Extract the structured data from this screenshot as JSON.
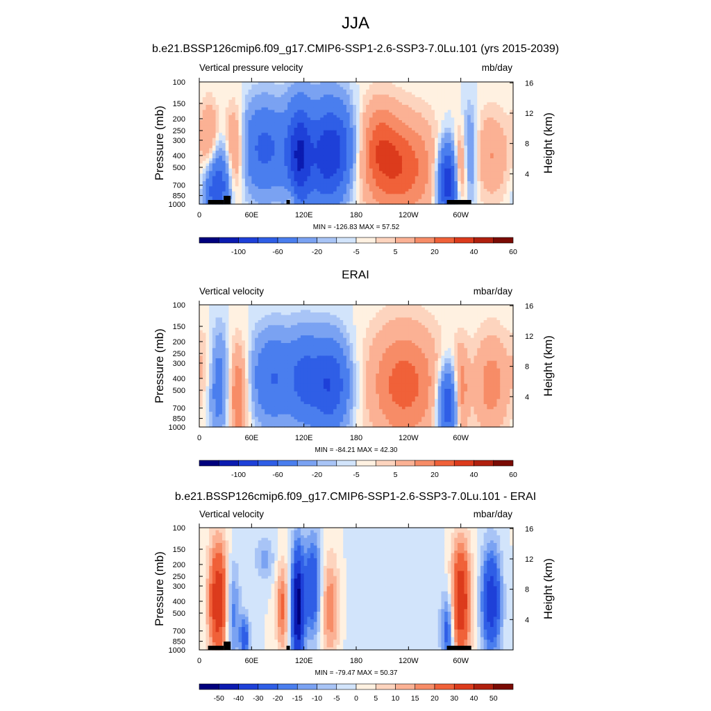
{
  "main_title": "JJA",
  "colors": {
    "diverging": [
      "#00007d",
      "#0b1bb0",
      "#1e40d8",
      "#2f5ee6",
      "#4a7eee",
      "#7aa2f2",
      "#a8c4f6",
      "#d2e4fb",
      "#fff1e1",
      "#fdd4be",
      "#fbb194",
      "#f78c67",
      "#f06139",
      "#dc3b1c",
      "#b0200e",
      "#7a0b04"
    ],
    "land": "#000000"
  },
  "chart_data": [
    {
      "type": "heatmap",
      "title": "b.e21.BSSP126cmip6.f09_g17.CMIP6-SSP1-2.6-SSP3-7.0Lu.101 (yrs 2015-2039)",
      "left_label": "Vertical pressure velocity",
      "units": "mb/day",
      "ylabel": "Pressure (mb)",
      "ylabel_right": "Height (km)",
      "y_ticks": [
        "100",
        "150",
        "200",
        "250",
        "300",
        "400",
        "500",
        "700",
        "850",
        "1000"
      ],
      "y_ticks_right": [
        "16",
        "12",
        "8",
        "4"
      ],
      "x_ticks": [
        "0",
        "60E",
        "120E",
        "180",
        "120W",
        "60W"
      ],
      "minmax": "MIN = -126.83  MAX =  57.52",
      "colorbar_labels": [
        "-100",
        "-60",
        "-20",
        "-5",
        "5",
        "20",
        "40",
        "60"
      ],
      "features": [
        {
          "lon": 25,
          "p": 600,
          "v": -40,
          "wl": 12,
          "wp": 0.5
        },
        {
          "lon": 40,
          "p": 400,
          "v": 40,
          "wl": 8,
          "wp": 0.6
        },
        {
          "lon": 18,
          "p": 800,
          "v": -30,
          "wl": 8,
          "wp": 0.3
        },
        {
          "lon": 12,
          "p": 300,
          "v": 25,
          "wl": 8,
          "wp": 0.5
        },
        {
          "lon": 75,
          "p": 350,
          "v": -45,
          "wl": 20,
          "wp": 0.6
        },
        {
          "lon": 115,
          "p": 400,
          "v": -75,
          "wl": 10,
          "wp": 0.7
        },
        {
          "lon": 145,
          "p": 400,
          "v": -65,
          "wl": 14,
          "wp": 0.7
        },
        {
          "lon": 165,
          "p": 350,
          "v": -35,
          "wl": 12,
          "wp": 0.6
        },
        {
          "lon": 105,
          "p": 900,
          "v": 15,
          "wl": 4,
          "wp": 0.2
        },
        {
          "lon": 230,
          "p": 500,
          "v": 38,
          "wl": 30,
          "wp": 0.7
        },
        {
          "lon": 205,
          "p": 300,
          "v": 18,
          "wl": 15,
          "wp": 0.6
        },
        {
          "lon": 285,
          "p": 650,
          "v": -80,
          "wl": 8,
          "wp": 0.5
        },
        {
          "lon": 300,
          "p": 500,
          "v": 30,
          "wl": 6,
          "wp": 0.5
        },
        {
          "lon": 310,
          "p": 400,
          "v": -30,
          "wl": 6,
          "wp": 0.6
        },
        {
          "lon": 335,
          "p": 400,
          "v": 20,
          "wl": 15,
          "wp": 0.6
        }
      ],
      "land": [
        [
          10,
          28
        ],
        [
          28,
          36
        ],
        [
          100,
          104
        ],
        [
          284,
          312
        ]
      ]
    },
    {
      "type": "heatmap",
      "title": "ERAI",
      "left_label": "Vertical velocity",
      "units": "mbar/day",
      "ylabel": "Pressure (mb)",
      "ylabel_right": "Height (km)",
      "y_ticks": [
        "100",
        "150",
        "200",
        "250",
        "300",
        "400",
        "500",
        "700",
        "850",
        "1000"
      ],
      "y_ticks_right": [
        "16",
        "12",
        "8",
        "4"
      ],
      "x_ticks": [
        "0",
        "60E",
        "120E",
        "180",
        "120W",
        "60W"
      ],
      "minmax": "MIN = -84.21  MAX =  42.30",
      "colorbar_labels": [
        "-100",
        "-60",
        "-20",
        "-5",
        "5",
        "20",
        "40",
        "60"
      ],
      "features": [
        {
          "lon": 22,
          "p": 450,
          "v": -30,
          "wl": 8,
          "wp": 0.7
        },
        {
          "lon": 45,
          "p": 550,
          "v": 32,
          "wl": 8,
          "wp": 0.7
        },
        {
          "lon": 8,
          "p": 300,
          "v": 10,
          "wl": 8,
          "wp": 0.5
        },
        {
          "lon": 85,
          "p": 400,
          "v": -40,
          "wl": 18,
          "wp": 0.6
        },
        {
          "lon": 150,
          "p": 450,
          "v": -60,
          "wl": 16,
          "wp": 0.6
        },
        {
          "lon": 120,
          "p": 400,
          "v": -35,
          "wl": 12,
          "wp": 0.6
        },
        {
          "lon": 235,
          "p": 450,
          "v": 35,
          "wl": 30,
          "wp": 0.8
        },
        {
          "lon": 285,
          "p": 650,
          "v": -60,
          "wl": 8,
          "wp": 0.5
        },
        {
          "lon": 300,
          "p": 500,
          "v": 25,
          "wl": 6,
          "wp": 0.6
        },
        {
          "lon": 335,
          "p": 450,
          "v": 25,
          "wl": 15,
          "wp": 0.7
        }
      ],
      "land": []
    },
    {
      "type": "heatmap",
      "title": "b.e21.BSSP126cmip6.f09_g17.CMIP6-SSP1-2.6-SSP3-7.0Lu.101 - ERAI",
      "left_label": "Vertical velocity",
      "units": "mbar/day",
      "ylabel": "Pressure (mb)",
      "ylabel_right": "Height (km)",
      "y_ticks": [
        "100",
        "150",
        "200",
        "250",
        "300",
        "400",
        "500",
        "700",
        "850",
        "1000"
      ],
      "y_ticks_right": [
        "16",
        "12",
        "8",
        "4"
      ],
      "x_ticks": [
        "0",
        "60E",
        "120E",
        "180",
        "120W",
        "60W"
      ],
      "minmax": "MIN = -79.47  MAX =  50.37",
      "colorbar_labels": [
        "-50",
        "-40",
        "-30",
        "-20",
        "-15",
        "-10",
        "-5",
        "0",
        "5",
        "10",
        "15",
        "20",
        "30",
        "40",
        "50"
      ],
      "features": [
        {
          "lon": 22,
          "p": 400,
          "v": 40,
          "wl": 8,
          "wp": 0.8
        },
        {
          "lon": 38,
          "p": 500,
          "v": -20,
          "wl": 6,
          "wp": 0.7
        },
        {
          "lon": 52,
          "p": 800,
          "v": -25,
          "wl": 4,
          "wp": 0.3
        },
        {
          "lon": 95,
          "p": 450,
          "v": 22,
          "wl": 5,
          "wp": 0.6
        },
        {
          "lon": 113,
          "p": 450,
          "v": -55,
          "wl": 5,
          "wp": 0.8
        },
        {
          "lon": 130,
          "p": 300,
          "v": -30,
          "wl": 7,
          "wp": 0.7
        },
        {
          "lon": 150,
          "p": 450,
          "v": 20,
          "wl": 8,
          "wp": 0.7
        },
        {
          "lon": 75,
          "p": 180,
          "v": -12,
          "wl": 8,
          "wp": 0.3
        },
        {
          "lon": 300,
          "p": 400,
          "v": 40,
          "wl": 8,
          "wp": 0.8
        },
        {
          "lon": 285,
          "p": 700,
          "v": -25,
          "wl": 5,
          "wp": 0.5
        },
        {
          "lon": 335,
          "p": 400,
          "v": -38,
          "wl": 8,
          "wp": 0.7
        },
        {
          "lon": 225,
          "p": 500,
          "v": -5,
          "wl": 40,
          "wp": 0.9
        }
      ],
      "land": [
        [
          10,
          28
        ],
        [
          28,
          36
        ],
        [
          100,
          104
        ],
        [
          284,
          312
        ]
      ]
    }
  ]
}
